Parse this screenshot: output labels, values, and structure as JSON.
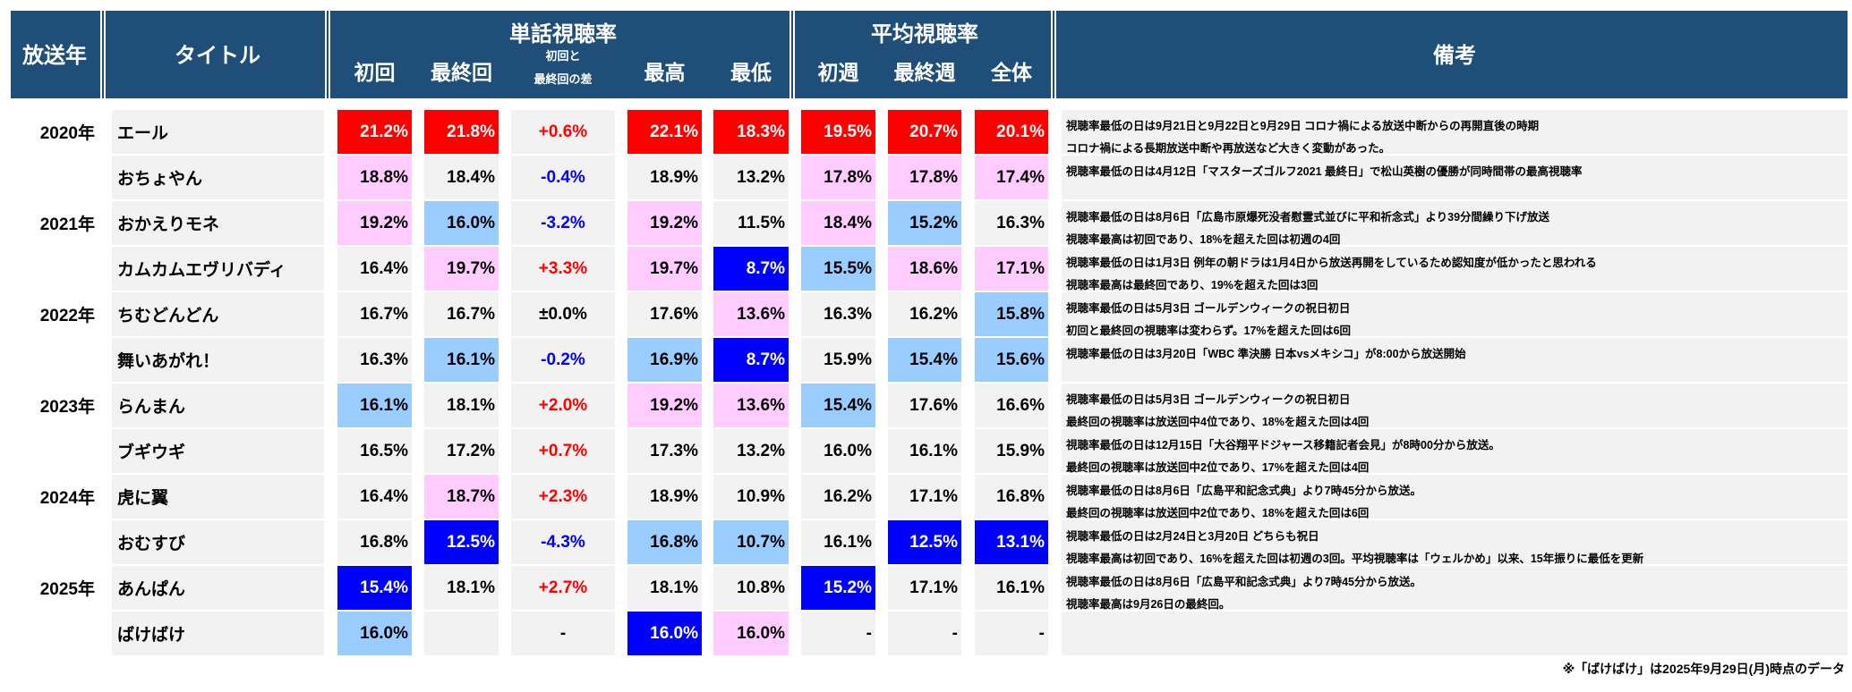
{
  "colors": {
    "header_bg": "#1f4e78",
    "R": "#ff0000",
    "P": "#ffccff",
    "L": "#99ccff",
    "B": "#0000ff",
    "G": "#f2f2f2",
    "plus": "#ff0000",
    "minus": "#0000ff"
  },
  "header": {
    "year": "放送年",
    "title": "タイトル",
    "episode_group": "単話視聴率",
    "average_group": "平均視聴率",
    "remarks": "備考",
    "cols": [
      "初回",
      "最終回",
      "初回と",
      "最終回の差",
      "最高",
      "最低",
      "初週",
      "最終週",
      "全体"
    ]
  },
  "rows": [
    {
      "year": "2020年",
      "title": "エール",
      "cells": [
        [
          "21.2%",
          "R"
        ],
        [
          "21.8%",
          "R"
        ],
        [
          "+0.6%",
          "G"
        ],
        [
          "22.1%",
          "R"
        ],
        [
          "18.3%",
          "R"
        ],
        [
          "19.5%",
          "R"
        ],
        [
          "20.7%",
          "R"
        ],
        [
          "20.1%",
          "R"
        ]
      ],
      "remarks": [
        "視聴率最低の日は9月21日と9月22日と9月29日 コロナ禍による放送中断からの再開直後の時期",
        "コロナ禍による長期放送中断や再放送など大きく変動があった。"
      ]
    },
    {
      "year": "",
      "title": "おちょやん",
      "cells": [
        [
          "18.8%",
          "P"
        ],
        [
          "18.4%",
          "G"
        ],
        [
          "-0.4%",
          "G"
        ],
        [
          "18.9%",
          "G"
        ],
        [
          "13.2%",
          "G"
        ],
        [
          "17.8%",
          "P"
        ],
        [
          "17.8%",
          "P"
        ],
        [
          "17.4%",
          "P"
        ]
      ],
      "remarks": [
        "視聴率最低の日は4月12日「マスターズゴルフ2021 最終日」で松山英樹の優勝が同時間帯の最高視聴率"
      ]
    },
    {
      "year": "2021年",
      "title": "おかえりモネ",
      "cells": [
        [
          "19.2%",
          "P"
        ],
        [
          "16.0%",
          "L"
        ],
        [
          "-3.2%",
          "G"
        ],
        [
          "19.2%",
          "P"
        ],
        [
          "11.5%",
          "G"
        ],
        [
          "18.4%",
          "P"
        ],
        [
          "15.2%",
          "L"
        ],
        [
          "16.3%",
          "G"
        ]
      ],
      "remarks": [
        "視聴率最低の日は8月6日「広島市原爆死没者慰霊式並びに平和祈念式」より39分間繰り下げ放送",
        "視聴率最高は初回であり、18%を超えた回は初週の4回"
      ]
    },
    {
      "year": "",
      "title": "カムカムエヴリバディ",
      "cells": [
        [
          "16.4%",
          "G"
        ],
        [
          "19.7%",
          "P"
        ],
        [
          "+3.3%",
          "G"
        ],
        [
          "19.7%",
          "P"
        ],
        [
          "8.7%",
          "B"
        ],
        [
          "15.5%",
          "L"
        ],
        [
          "18.6%",
          "P"
        ],
        [
          "17.1%",
          "P"
        ]
      ],
      "remarks": [
        "視聴率最低の日は1月3日 例年の朝ドラは1月4日から放送再開をしているため認知度が低かったと思われる",
        "視聴率最高は最終回であり、19%を超えた回は3回"
      ]
    },
    {
      "year": "2022年",
      "title": "ちむどんどん",
      "cells": [
        [
          "16.7%",
          "G"
        ],
        [
          "16.7%",
          "G"
        ],
        [
          "±0.0%",
          "G"
        ],
        [
          "17.6%",
          "G"
        ],
        [
          "13.6%",
          "P"
        ],
        [
          "16.3%",
          "G"
        ],
        [
          "16.2%",
          "G"
        ],
        [
          "15.8%",
          "L"
        ]
      ],
      "remarks": [
        "視聴率最低の日は5月3日 ゴールデンウィークの祝日初日",
        "初回と最終回の視聴率は変わらず。17%を超えた回は6回"
      ]
    },
    {
      "year": "",
      "title": "舞いあがれ！",
      "cells": [
        [
          "16.3%",
          "G"
        ],
        [
          "16.1%",
          "L"
        ],
        [
          "-0.2%",
          "G"
        ],
        [
          "16.9%",
          "L"
        ],
        [
          "8.7%",
          "B"
        ],
        [
          "15.9%",
          "G"
        ],
        [
          "15.4%",
          "L"
        ],
        [
          "15.6%",
          "L"
        ]
      ],
      "remarks": [
        "視聴率最低の日は3月20日「WBC 準決勝 日本vsメキシコ」が8:00から放送開始"
      ]
    },
    {
      "year": "2023年",
      "title": "らんまん",
      "cells": [
        [
          "16.1%",
          "L"
        ],
        [
          "18.1%",
          "G"
        ],
        [
          "+2.0%",
          "G"
        ],
        [
          "19.2%",
          "P"
        ],
        [
          "13.6%",
          "P"
        ],
        [
          "15.4%",
          "L"
        ],
        [
          "17.6%",
          "G"
        ],
        [
          "16.6%",
          "G"
        ]
      ],
      "remarks": [
        "視聴率最低の日は5月3日 ゴールデンウィークの祝日初日",
        "最終回の視聴率は放送回中4位であり、18%を超えた回は4回"
      ]
    },
    {
      "year": "",
      "title": "ブギウギ",
      "cells": [
        [
          "16.5%",
          "G"
        ],
        [
          "17.2%",
          "G"
        ],
        [
          "+0.7%",
          "G"
        ],
        [
          "17.3%",
          "G"
        ],
        [
          "13.2%",
          "G"
        ],
        [
          "16.0%",
          "G"
        ],
        [
          "16.1%",
          "G"
        ],
        [
          "15.9%",
          "G"
        ]
      ],
      "remarks": [
        "視聴率最低の日は12月15日「大谷翔平ドジャース移籍記者会見」が8時00分から放送。",
        "最終回の視聴率は放送回中2位であり、17%を超えた回は4回"
      ]
    },
    {
      "year": "2024年",
      "title": "虎に翼",
      "cells": [
        [
          "16.4%",
          "G"
        ],
        [
          "18.7%",
          "P"
        ],
        [
          "+2.3%",
          "G"
        ],
        [
          "18.9%",
          "G"
        ],
        [
          "10.9%",
          "G"
        ],
        [
          "16.2%",
          "G"
        ],
        [
          "17.1%",
          "G"
        ],
        [
          "16.8%",
          "G"
        ]
      ],
      "remarks": [
        "視聴率最低の日は8月6日「広島平和記念式典」より7時45分から放送。",
        "最終回の視聴率は放送回中2位であり、18%を超えた回は6回"
      ]
    },
    {
      "year": "",
      "title": "おむすび",
      "cells": [
        [
          "16.8%",
          "G"
        ],
        [
          "12.5%",
          "B"
        ],
        [
          "-4.3%",
          "G"
        ],
        [
          "16.8%",
          "L"
        ],
        [
          "10.7%",
          "L"
        ],
        [
          "16.1%",
          "G"
        ],
        [
          "12.5%",
          "B"
        ],
        [
          "13.1%",
          "B"
        ]
      ],
      "remarks": [
        "視聴率最低の日は2月24日と3月20日 どちらも祝日",
        "視聴率最高は初回であり、16%を超えた回は初週の3回。平均視聴率は「ウェルかめ」以来、15年振りに最低を更新"
      ]
    },
    {
      "year": "2025年",
      "title": "あんぱん",
      "cells": [
        [
          "15.4%",
          "B"
        ],
        [
          "18.1%",
          "G"
        ],
        [
          "+2.7%",
          "G"
        ],
        [
          "18.1%",
          "G"
        ],
        [
          "10.8%",
          "G"
        ],
        [
          "15.2%",
          "B"
        ],
        [
          "17.1%",
          "G"
        ],
        [
          "16.1%",
          "G"
        ]
      ],
      "remarks": [
        "視聴率最低の日は8月6日「広島平和記念式典」より7時45分から放送。",
        "視聴率最高は9月26日の最終回。"
      ]
    },
    {
      "year": "",
      "title": "ばけばけ",
      "cells": [
        [
          "16.0%",
          "L"
        ],
        [
          "",
          "G"
        ],
        [
          "-",
          "G"
        ],
        [
          "16.0%",
          "B"
        ],
        [
          "16.0%",
          "P"
        ],
        [
          "-",
          "G"
        ],
        [
          "-",
          "G"
        ],
        [
          "-",
          "G"
        ]
      ],
      "remarks": []
    }
  ],
  "footnote": "※「ばけばけ」は2025年9月29日(月)時点のデータ"
}
